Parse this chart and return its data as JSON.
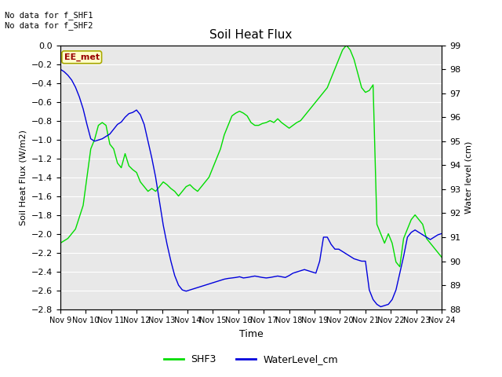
{
  "title": "Soil Heat Flux",
  "ylabel_left": "Soil Heat Flux (W/m2)",
  "ylabel_right": "Water level (cm)",
  "xlabel": "Time",
  "ylim_left": [
    -2.8,
    0.0
  ],
  "ylim_right": [
    88.0,
    99.0
  ],
  "yticks_left": [
    0.0,
    -0.2,
    -0.4,
    -0.6,
    -0.8,
    -1.0,
    -1.2,
    -1.4,
    -1.6,
    -1.8,
    -2.0,
    -2.2,
    -2.4,
    -2.6,
    -2.8
  ],
  "yticks_right": [
    88.0,
    89.0,
    90.0,
    91.0,
    92.0,
    93.0,
    94.0,
    95.0,
    96.0,
    97.0,
    98.0,
    99.0
  ],
  "xtick_labels": [
    "Nov 9",
    "Nov 10",
    "Nov 11",
    "Nov 12",
    "Nov 13",
    "Nov 14",
    "Nov 15",
    "Nov 16",
    "Nov 17",
    "Nov 18",
    "Nov 19",
    "Nov 20",
    "Nov 21",
    "Nov 22",
    "Nov 23",
    "Nov 24"
  ],
  "annotation_top_left": "No data for f_SHF1\nNo data for f_SHF2",
  "box_label": "EE_met",
  "color_shf3": "#00dd00",
  "color_water": "#0000dd",
  "background_color": "#e8e8e8",
  "shf3_x": [
    0,
    2,
    4,
    6,
    7,
    8,
    9,
    10,
    11,
    12,
    13,
    14,
    15,
    16,
    17,
    18,
    19,
    20,
    21,
    22,
    23,
    24,
    25,
    26,
    27,
    28,
    29,
    30,
    31,
    32,
    33,
    34,
    35,
    36,
    37,
    38,
    39,
    40,
    41,
    42,
    43,
    44,
    45,
    46,
    47,
    48,
    49,
    50,
    51,
    52,
    53,
    54,
    55,
    56,
    57,
    58,
    59,
    60,
    61,
    62,
    63,
    64,
    65,
    66,
    67,
    68,
    69,
    70,
    71,
    72,
    73,
    74,
    75,
    76,
    77,
    78,
    79,
    80,
    81,
    82,
    83,
    84,
    85,
    86,
    87,
    88,
    89,
    90,
    91,
    92,
    93,
    94,
    95,
    96,
    97,
    98,
    99,
    100
  ],
  "shf3_y": [
    -2.1,
    -2.05,
    -1.95,
    -1.7,
    -1.4,
    -1.1,
    -1.0,
    -0.85,
    -0.82,
    -0.85,
    -1.05,
    -1.1,
    -1.25,
    -1.3,
    -1.15,
    -1.28,
    -1.32,
    -1.35,
    -1.45,
    -1.5,
    -1.55,
    -1.52,
    -1.55,
    -1.5,
    -1.45,
    -1.48,
    -1.52,
    -1.55,
    -1.6,
    -1.55,
    -1.5,
    -1.48,
    -1.52,
    -1.55,
    -1.5,
    -1.45,
    -1.4,
    -1.3,
    -1.2,
    -1.1,
    -0.95,
    -0.85,
    -0.75,
    -0.72,
    -0.7,
    -0.72,
    -0.75,
    -0.82,
    -0.85,
    -0.85,
    -0.83,
    -0.82,
    -0.8,
    -0.82,
    -0.78,
    -0.82,
    -0.85,
    -0.88,
    -0.85,
    -0.82,
    -0.8,
    -0.75,
    -0.7,
    -0.65,
    -0.6,
    -0.55,
    -0.5,
    -0.45,
    -0.35,
    -0.25,
    -0.15,
    -0.05,
    0.0,
    -0.05,
    -0.15,
    -0.3,
    -0.45,
    -0.5,
    -0.48,
    -0.42,
    -1.9,
    -2.0,
    -2.1,
    -2.0,
    -2.1,
    -2.3,
    -2.35,
    -2.05,
    -1.95,
    -1.85,
    -1.8,
    -1.85,
    -1.9,
    -2.05,
    -2.1,
    -2.15,
    -2.2,
    -2.25
  ],
  "water_x": [
    0,
    1,
    2,
    3,
    4,
    5,
    6,
    7,
    8,
    9,
    10,
    11,
    12,
    13,
    14,
    15,
    16,
    17,
    18,
    19,
    20,
    21,
    22,
    23,
    24,
    25,
    26,
    27,
    28,
    29,
    30,
    31,
    32,
    33,
    34,
    35,
    36,
    37,
    38,
    39,
    40,
    41,
    42,
    43,
    44,
    45,
    46,
    47,
    48,
    49,
    50,
    51,
    52,
    53,
    54,
    55,
    56,
    57,
    58,
    59,
    60,
    61,
    62,
    63,
    64,
    65,
    66,
    67,
    68,
    69,
    70,
    71,
    72,
    73,
    74,
    75,
    76,
    77,
    78,
    79,
    80,
    81,
    82,
    83,
    84,
    85,
    86,
    87,
    88,
    89,
    90,
    91,
    92,
    93,
    94,
    95,
    96,
    97,
    98,
    99,
    100
  ],
  "water_y": [
    98.0,
    97.9,
    97.75,
    97.55,
    97.25,
    96.85,
    96.35,
    95.7,
    95.1,
    95.0,
    95.05,
    95.1,
    95.2,
    95.3,
    95.5,
    95.7,
    95.8,
    96.0,
    96.15,
    96.2,
    96.3,
    96.1,
    95.7,
    95.0,
    94.3,
    93.5,
    92.5,
    91.5,
    90.7,
    90.0,
    89.4,
    89.0,
    88.8,
    88.75,
    88.8,
    88.85,
    88.9,
    88.95,
    89.0,
    89.05,
    89.1,
    89.15,
    89.2,
    89.25,
    89.28,
    89.3,
    89.32,
    89.35,
    89.3,
    89.32,
    89.35,
    89.38,
    89.35,
    89.32,
    89.3,
    89.32,
    89.35,
    89.38,
    89.35,
    89.32,
    89.4,
    89.5,
    89.55,
    89.6,
    89.65,
    89.6,
    89.55,
    89.5,
    90.0,
    91.0,
    91.0,
    90.7,
    90.5,
    90.5,
    90.4,
    90.3,
    90.2,
    90.1,
    90.05,
    90.0,
    90.0,
    88.8,
    88.4,
    88.2,
    88.1,
    88.15,
    88.2,
    88.4,
    88.8,
    89.5,
    90.2,
    91.0,
    91.2,
    91.3,
    91.2,
    91.1,
    91.0,
    90.9,
    91.0,
    91.1,
    91.15
  ]
}
